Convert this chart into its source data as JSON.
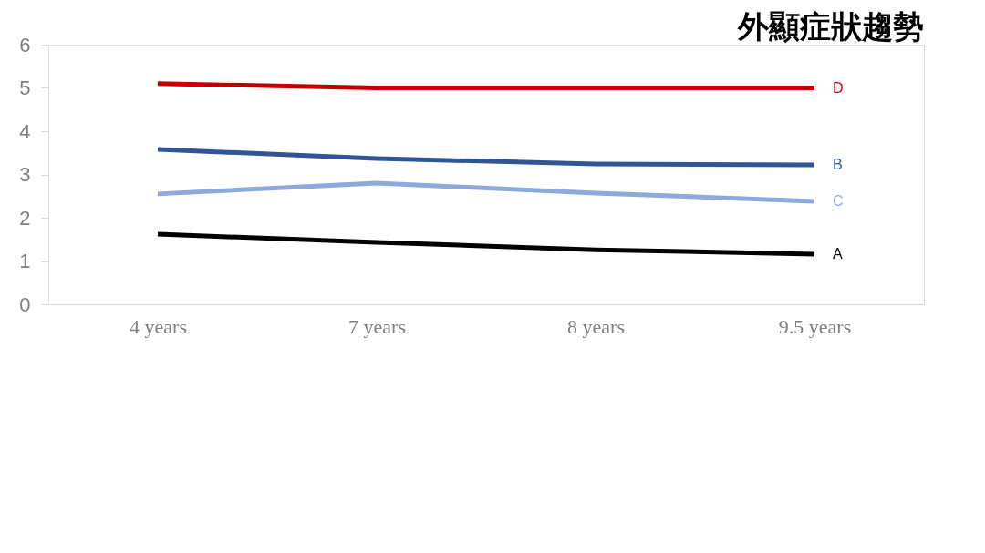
{
  "chart_data": {
    "type": "line",
    "title": "外顯症狀趨勢",
    "categories": [
      "4 years",
      "7 years",
      "8 years",
      "9.5 years"
    ],
    "series": [
      {
        "name": "D",
        "color": "#c00000",
        "values": [
          5.1,
          5.0,
          5.0,
          5.0
        ]
      },
      {
        "name": "B",
        "color": "#2f5597",
        "values": [
          3.58,
          3.37,
          3.24,
          3.22
        ]
      },
      {
        "name": "C",
        "color": "#8eaadb",
        "values": [
          2.55,
          2.8,
          2.57,
          2.38
        ]
      },
      {
        "name": "A",
        "color": "#000000",
        "values": [
          1.62,
          1.43,
          1.26,
          1.16
        ]
      }
    ],
    "ylim": [
      0,
      6
    ],
    "yticks": [
      0,
      1,
      2,
      3,
      4,
      5,
      6
    ],
    "grid": false,
    "legend": false,
    "marker": "none",
    "line_style": "solid"
  }
}
